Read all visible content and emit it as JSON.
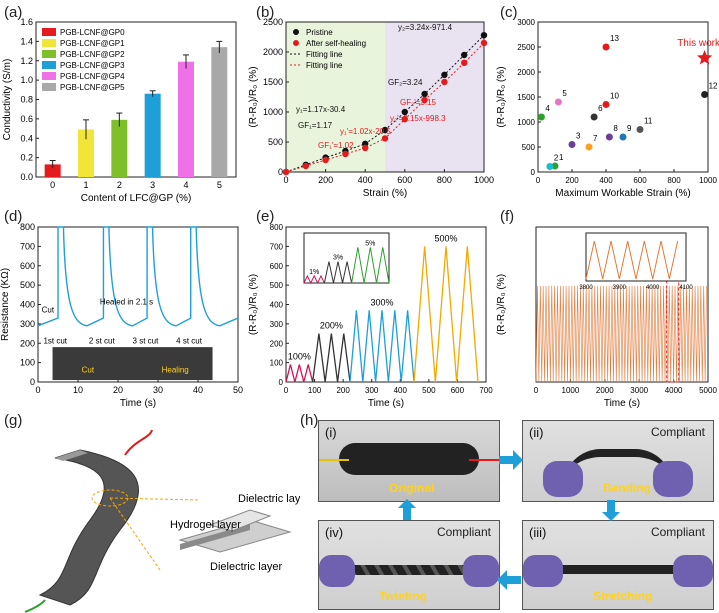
{
  "labels": {
    "a": "(a)",
    "b": "(b)",
    "c": "(c)",
    "d": "(d)",
    "e": "(e)",
    "f": "(f)",
    "g": "(g)",
    "h": "(h)"
  },
  "colors": {
    "red": "#e41a1c",
    "yellow": "#f2e53a",
    "green": "#7fbf2a",
    "blue": "#1f9fd8",
    "pink": "#f070e8",
    "gray": "#a8a8a8",
    "orange": "#e07b39"
  },
  "chart_data": [
    {
      "id": "a",
      "type": "bar",
      "xlabel": "Content of LFC@GP (%)",
      "ylabel": "Conductivity (S/m)",
      "categories": [
        "0",
        "1",
        "2",
        "3",
        "4",
        "5"
      ],
      "values": [
        0.13,
        0.49,
        0.59,
        0.86,
        1.19,
        1.34
      ],
      "errors": [
        0.04,
        0.1,
        0.07,
        0.03,
        0.07,
        0.06
      ],
      "ylim": [
        0,
        1.6
      ],
      "yticks": [
        "0.0",
        "0.2",
        "0.4",
        "0.6",
        "0.8",
        "1.0",
        "1.2",
        "1.4",
        "1.6"
      ],
      "legend": [
        "PGB-LCNF@GP0",
        "PGB-LCNF@GP1",
        "PGB-LCNF@GP2",
        "PGB-LCNF@GP3",
        "PGB-LCNF@GP4",
        "PGB-LCNF@GP5"
      ],
      "legend_position": "top-left"
    },
    {
      "id": "b",
      "type": "line",
      "xlabel": "Strain (%)",
      "ylabel": "(R-R₀)/R₀ (%)",
      "xlim": [
        0,
        1000
      ],
      "ylim": [
        0,
        2500
      ],
      "xticks": [
        "0",
        "200",
        "400",
        "600",
        "800",
        "1000"
      ],
      "yticks": [
        "0",
        "500",
        "1000",
        "1500",
        "2000",
        "2500"
      ],
      "series": [
        {
          "name": "Pristine",
          "x": [
            0,
            100,
            200,
            300,
            400,
            500,
            600,
            700,
            800,
            900,
            1000
          ],
          "y": [
            0,
            120,
            240,
            350,
            470,
            700,
            1000,
            1300,
            1620,
            1950,
            2280
          ]
        },
        {
          "name": "After self-healing",
          "x": [
            0,
            100,
            200,
            300,
            400,
            500,
            600,
            700,
            800,
            900,
            1000
          ],
          "y": [
            0,
            100,
            200,
            300,
            400,
            560,
            880,
            1200,
            1500,
            1820,
            2150
          ]
        },
        {
          "name": "Fitting line"
        },
        {
          "name": "Fitting line"
        }
      ],
      "annotations": [
        "y₂=3.24x-971.4",
        "GF₂=3.24",
        "GF₂'=3.15",
        "y₂'=3.15x-998.3",
        "y₁=1.17x-30.4",
        "GF₁=1.17",
        "y₁'=1.02x-20.5",
        "GF₁'=1.02"
      ]
    },
    {
      "id": "c",
      "type": "scatter",
      "xlabel": "Maximum Workable Strain (%)",
      "ylabel": "(R-R₀)/R₀ (%)",
      "xlim": [
        0,
        1000
      ],
      "ylim": [
        0,
        3000
      ],
      "xticks": [
        "0",
        "200",
        "400",
        "600",
        "800",
        "1000"
      ],
      "yticks": [
        "0",
        "500",
        "1000",
        "1500",
        "2000",
        "2500",
        "3000"
      ],
      "points": [
        {
          "label": "1",
          "x": 100,
          "y": 120,
          "color": "#2ca02c"
        },
        {
          "label": "2",
          "x": 70,
          "y": 110,
          "color": "#17becf"
        },
        {
          "label": "3",
          "x": 200,
          "y": 550,
          "color": "#6a3d9a"
        },
        {
          "label": "4",
          "x": 20,
          "y": 1100,
          "color": "#2ca02c"
        },
        {
          "label": "5",
          "x": 120,
          "y": 1400,
          "color": "#e377c2"
        },
        {
          "label": "6",
          "x": 330,
          "y": 1100,
          "color": "#333333"
        },
        {
          "label": "7",
          "x": 300,
          "y": 500,
          "color": "#ff9f1c"
        },
        {
          "label": "8",
          "x": 420,
          "y": 700,
          "color": "#6a3d9a"
        },
        {
          "label": "9",
          "x": 500,
          "y": 700,
          "color": "#1f77b4"
        },
        {
          "label": "10",
          "x": 400,
          "y": 1350,
          "color": "#e41a1c"
        },
        {
          "label": "11",
          "x": 600,
          "y": 850,
          "color": "#555555"
        },
        {
          "label": "12",
          "x": 980,
          "y": 1550,
          "color": "#222222"
        },
        {
          "label": "13",
          "x": 400,
          "y": 2500,
          "color": "#e41a1c"
        },
        {
          "label": "This work",
          "x": 980,
          "y": 2280,
          "color": "#e41a1c"
        }
      ]
    },
    {
      "id": "d",
      "type": "line",
      "xlabel": "Time (s)",
      "ylabel": "Resistance (KΩ)",
      "xlim": [
        0,
        55
      ],
      "ylim": [
        0,
        800
      ],
      "xticks": [
        "0",
        "10",
        "20",
        "30",
        "40",
        "50"
      ],
      "yticks": [
        "0",
        "100",
        "200",
        "300",
        "400",
        "500",
        "600",
        "700",
        "800"
      ],
      "annotations": [
        "Cut",
        "Healed in 2.1 s",
        "1st cut",
        "2 st cut",
        "3 st cut",
        "4 st cut",
        "Cut",
        "Healing"
      ]
    },
    {
      "id": "e",
      "type": "line",
      "xlabel": "Time (s)",
      "ylabel": "(R-R₀)/R₀ (%)",
      "xlim": [
        0,
        750
      ],
      "ylim": [
        0,
        800
      ],
      "xticks": [
        "0",
        "100",
        "200",
        "300",
        "400",
        "500",
        "600",
        "700"
      ],
      "yticks": [
        "0",
        "100",
        "200",
        "300",
        "400",
        "500",
        "600",
        "700",
        "800"
      ],
      "segments": [
        {
          "label": "100%",
          "color": "#d4145a",
          "t0": 0,
          "t1": 100,
          "amp": 90,
          "cycles": 3
        },
        {
          "label": "200%",
          "color": "#333333",
          "t0": 100,
          "t1": 240,
          "amp": 250,
          "cycles": 3
        },
        {
          "label": "300%",
          "color": "#1f9fd8",
          "t0": 240,
          "t1": 480,
          "amp": 370,
          "cycles": 5
        },
        {
          "label": "500%",
          "color": "#f2a900",
          "t0": 480,
          "t1": 720,
          "amp": 700,
          "cycles": 3
        }
      ],
      "inset": {
        "xlim": [
          0,
          250
        ],
        "ylim": [
          0,
          7
        ],
        "xticks": [
          "0",
          "50",
          "100",
          "150",
          "200",
          "250"
        ],
        "yticks": [
          "0",
          "1",
          "2",
          "3",
          "4",
          "5",
          "6",
          "7"
        ],
        "xlabel": "Time (s)",
        "ylabel": "(R-R₀)/R₀ (%)",
        "labels": [
          "1%",
          "3%",
          "5%"
        ]
      }
    },
    {
      "id": "f",
      "type": "line",
      "xlabel": "Time (s)",
      "ylabel": "(R-R₀)/R₀ (%)",
      "xlim": [
        0,
        5000
      ],
      "ylim": [
        0,
        100
      ],
      "xticks": [
        "0",
        "1000",
        "2000",
        "3000",
        "4000",
        "5000"
      ],
      "amp": 62,
      "inset": {
        "xlim": [
          3800,
          4150
        ],
        "ylim": [
          0,
          100
        ],
        "xticks": [
          "3800",
          "3900",
          "4000",
          "4100"
        ],
        "yticks": [
          "0",
          "20",
          "40",
          "60",
          "80",
          "100"
        ],
        "ylabel": "(R-R₀)/R₀ (%)"
      }
    }
  ],
  "panel_g": {
    "hydrogel": "Hydrogel layer",
    "dielectric_top": "Dielectric layer",
    "dielectric_bottom": "Dielectric layer"
  },
  "panel_h": {
    "i": {
      "num": "(i)",
      "tag": "Original"
    },
    "ii": {
      "num": "(ii)",
      "tag": "Bending",
      "note": "Compliant"
    },
    "iii": {
      "num": "(iii)",
      "tag": "Stretching",
      "note": "Compliant"
    },
    "iv": {
      "num": "(iv)",
      "tag": "Twisting",
      "note": "Compliant"
    }
  }
}
